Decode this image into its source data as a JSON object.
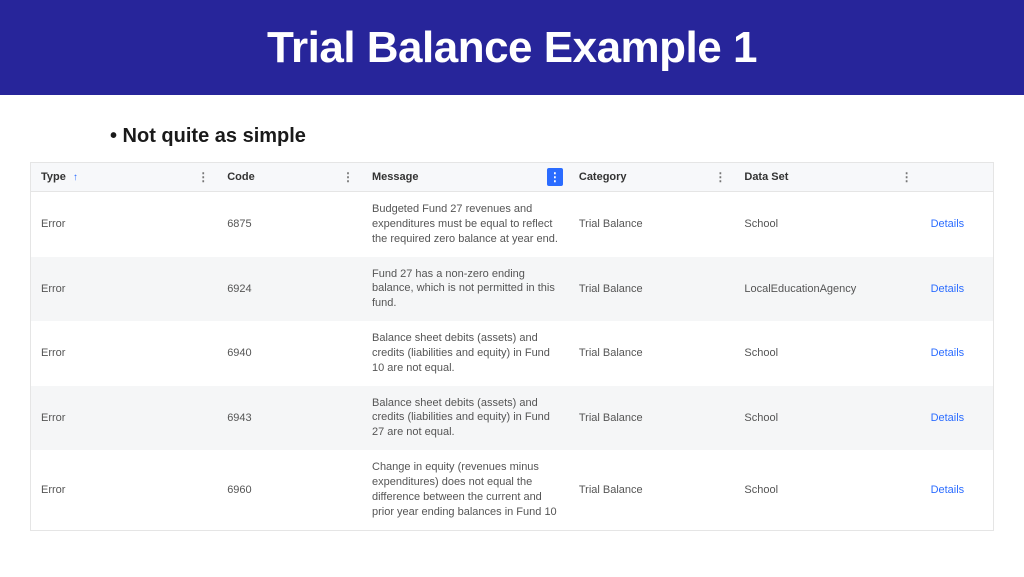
{
  "header": {
    "title": "Trial Balance Example 1"
  },
  "bullet": "• Not quite as simple",
  "table": {
    "columns": [
      {
        "key": "type",
        "label": "Type",
        "sorted": true,
        "menuActive": false
      },
      {
        "key": "code",
        "label": "Code",
        "sorted": false,
        "menuActive": false
      },
      {
        "key": "message",
        "label": "Message",
        "sorted": false,
        "menuActive": true
      },
      {
        "key": "category",
        "label": "Category",
        "sorted": false,
        "menuActive": false
      },
      {
        "key": "dataset",
        "label": "Data Set",
        "sorted": false,
        "menuActive": false
      }
    ],
    "actionLabel": "Details",
    "rows": [
      {
        "type": "Error",
        "code": "6875",
        "message": "Budgeted Fund 27 revenues and expenditures must be equal to reflect the required zero balance at year end.",
        "category": "Trial Balance",
        "dataset": "School"
      },
      {
        "type": "Error",
        "code": "6924",
        "message": "Fund 27 has a non-zero ending balance, which is not permitted in this fund.",
        "category": "Trial Balance",
        "dataset": "LocalEducationAgency"
      },
      {
        "type": "Error",
        "code": "6940",
        "message": "Balance sheet debits (assets) and credits (liabilities and equity) in Fund 10 are not equal.",
        "category": "Trial Balance",
        "dataset": "School"
      },
      {
        "type": "Error",
        "code": "6943",
        "message": "Balance sheet debits (assets) and credits (liabilities and equity) in Fund 27 are not equal.",
        "category": "Trial Balance",
        "dataset": "School"
      },
      {
        "type": "Error",
        "code": "6960",
        "message": "Change in equity (revenues minus expenditures) does not equal the difference between the current and prior year ending balances in Fund 10",
        "category": "Trial Balance",
        "dataset": "School"
      }
    ]
  },
  "colors": {
    "headerBg": "#27259a",
    "link": "#2b6cff",
    "rowAlt": "#f5f6f7",
    "headerRowBg": "#f7f8fa"
  }
}
